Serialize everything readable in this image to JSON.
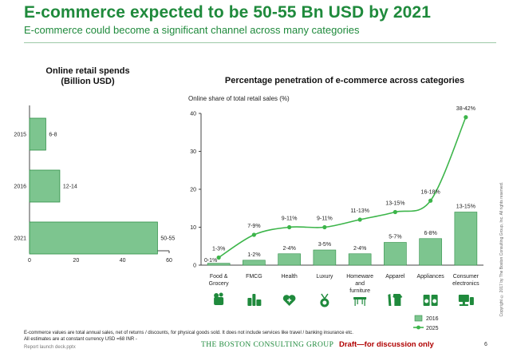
{
  "header": {
    "title": "E-commerce expected to be 50-55 Bn USD by 2021",
    "subtitle": "E-commerce could become a significant channel across many categories"
  },
  "colors": {
    "brand_green": "#1f8a3c",
    "bar_green": "#7dc58f",
    "bar_edge": "#2f8f47",
    "line_green": "#3cb54a"
  },
  "left_chart_title": [
    "Online retail spends",
    "(Billion USD)"
  ],
  "right_chart_title": "Percentage penetration of e-commerce across categories",
  "chart_data": [
    {
      "type": "bar",
      "orientation": "horizontal",
      "title": "Online retail spends (Billion USD)",
      "categories": [
        "2015",
        "2016",
        "2021"
      ],
      "values": [
        7,
        13,
        55
      ],
      "labels": [
        "6-8",
        "12-14",
        "50-55"
      ],
      "xlim": [
        0,
        60
      ],
      "xticks": [
        "0",
        "20",
        "40",
        "60"
      ]
    },
    {
      "type": "bar",
      "title": "Percentage penetration of e-commerce across categories",
      "ylabel": "Online share of total retail sales (%)",
      "ylim": [
        0,
        40
      ],
      "yticks": [
        "0",
        "10",
        "20",
        "30",
        "40"
      ],
      "categories": [
        [
          "Food &",
          "Grocery"
        ],
        [
          "FMCG"
        ],
        [
          "Health"
        ],
        [
          "Luxury"
        ],
        [
          "Homeware",
          "and",
          "furniture"
        ],
        [
          "Apparel"
        ],
        [
          "Appliances"
        ],
        [
          "Consumer",
          "electronics"
        ]
      ],
      "series": [
        {
          "name": "2016",
          "type": "bar",
          "values": [
            0.5,
            1.3,
            3,
            4,
            3,
            6,
            7,
            14
          ],
          "labels": [
            "0-1%",
            "1-2%",
            "2-4%",
            "3-5%",
            "2-4%",
            "5-7%",
            "6-8%",
            "13-15%"
          ]
        },
        {
          "name": "2025",
          "type": "line",
          "values": [
            2,
            8,
            10,
            10,
            12,
            14,
            17,
            39
          ],
          "labels": [
            "1-3%",
            "7-9%",
            "9-11%",
            "9-11%",
            "11-13%",
            "13-15%",
            "16-18%",
            "38-42%"
          ]
        }
      ],
      "legend_position": "bottom-right"
    }
  ],
  "icons": [
    "grocery-bag-icon",
    "fmcg-bottles-icon",
    "health-cross-icon",
    "luxury-medal-icon",
    "homeware-table-icon",
    "apparel-clothes-icon",
    "appliances-washer-icon",
    "electronics-devices-icon"
  ],
  "footnotes": [
    "E-commerce values are total annual sales, net of returns / discounts, for physical goods sold. It does not include services like travel / banking insurance etc.",
    "All estimates are at constant currency USD =68 INR -",
    "Report launch deck.pptx"
  ],
  "footer": {
    "company": "THE BOSTON CONSULTING GROUP",
    "draft": "Draft—for discussion only",
    "page": "6",
    "copyright": "Copyright © 2017 by The Boston Consulting Group, Inc. All rights reserved."
  }
}
